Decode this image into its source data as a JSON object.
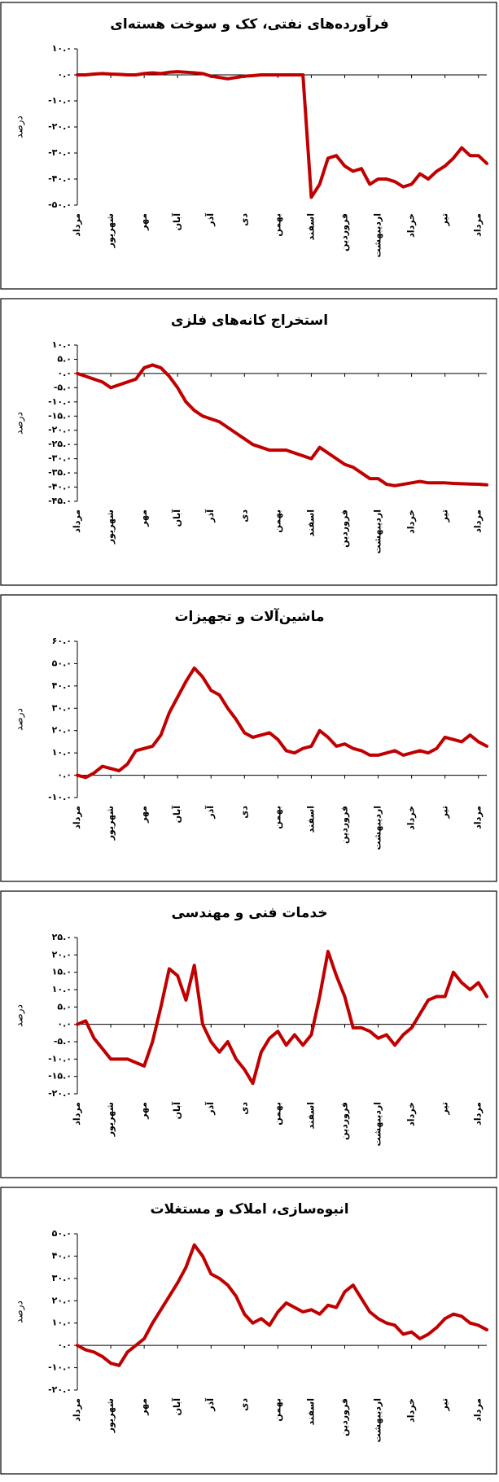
{
  "chart_data": [
    {
      "type": "line",
      "title": "فرآورده‌های نفتی، کک و سوخت هسته‌ای",
      "y_label": "درصد",
      "x": [
        0,
        0.25,
        0.5,
        0.75,
        1,
        1.25,
        1.5,
        1.75,
        2,
        2.25,
        2.5,
        2.75,
        3,
        3.25,
        3.5,
        3.75,
        4,
        4.25,
        4.5,
        4.75,
        5,
        5.25,
        5.5,
        5.75,
        6,
        6.25,
        6.5,
        6.75,
        7,
        7.25,
        7.5,
        7.75,
        8,
        8.25,
        8.5,
        8.75,
        9,
        9.25,
        9.5,
        9.75,
        10,
        10.25,
        10.5,
        10.75,
        11,
        11.25,
        11.5,
        11.75,
        12,
        12.25
      ],
      "series": [
        {
          "color": "#c00000",
          "values": [
            0,
            0,
            0.3,
            0.5,
            0.3,
            0.2,
            0,
            0,
            0.5,
            0.8,
            0.5,
            1,
            1.2,
            1,
            0.8,
            0.5,
            -0.5,
            -1,
            -1.5,
            -1,
            -0.5,
            -0.3,
            0,
            0,
            0,
            0,
            0,
            0,
            -47,
            -42,
            -32,
            -31,
            -35,
            -37,
            -36,
            -42,
            -40,
            -40,
            -41,
            -43,
            -42,
            -38,
            -40,
            -37,
            -35,
            -32,
            -28,
            -31,
            -31,
            -34
          ]
        }
      ],
      "xlim": [
        0,
        12.25
      ],
      "xticks": [
        {
          "value": 0,
          "label": "مرداد"
        },
        {
          "value": 1,
          "label": "شهریور"
        },
        {
          "value": 2,
          "label": "مهر"
        },
        {
          "value": 3,
          "label": "آبان"
        },
        {
          "value": 4,
          "label": "آذر"
        },
        {
          "value": 5,
          "label": "دی"
        },
        {
          "value": 6,
          "label": "بهمن"
        },
        {
          "value": 7,
          "label": "اسفند"
        },
        {
          "value": 8,
          "label": "فروردین"
        },
        {
          "value": 9,
          "label": "اردیبهشت"
        },
        {
          "value": 10,
          "label": "خرداد"
        },
        {
          "value": 11,
          "label": "تیر"
        },
        {
          "value": 12,
          "label": "مرداد"
        }
      ],
      "ylim": [
        -50,
        10
      ],
      "yticks": [
        {
          "value": -50,
          "label": "-۵۰.۰"
        },
        {
          "value": -40,
          "label": "-۴۰.۰"
        },
        {
          "value": -30,
          "label": "-۳۰.۰"
        },
        {
          "value": -20,
          "label": "-۲۰.۰"
        },
        {
          "value": -10,
          "label": "-۱۰.۰"
        },
        {
          "value": 0,
          "label": "۰.۰"
        },
        {
          "value": 10,
          "label": "۱۰.۰"
        }
      ]
    },
    {
      "type": "line",
      "title": "استخراج کانه‌های فلزی",
      "y_label": "درصد",
      "x": [
        0,
        0.25,
        0.5,
        0.75,
        1,
        1.25,
        1.5,
        1.75,
        2,
        2.25,
        2.5,
        2.75,
        3,
        3.25,
        3.5,
        3.75,
        4,
        4.25,
        4.5,
        4.75,
        5,
        5.25,
        5.5,
        5.75,
        6,
        6.25,
        6.5,
        6.75,
        7,
        7.25,
        7.5,
        7.75,
        8,
        8.25,
        8.5,
        8.75,
        9,
        9.25,
        9.5,
        9.75,
        10,
        10.25,
        10.5,
        10.75,
        11,
        11.25,
        11.5,
        11.75,
        12,
        12.25
      ],
      "series": [
        {
          "color": "#c00000",
          "values": [
            0,
            -1,
            -2,
            -3,
            -5,
            -4,
            -3,
            -2,
            2,
            3,
            2,
            -1,
            -5,
            -10,
            -13,
            -15,
            -16,
            -17,
            -19,
            -21,
            -23,
            -25,
            -26,
            -27,
            -27,
            -27,
            -28,
            -29,
            -30,
            -26,
            -28,
            -30,
            -32,
            -33,
            -35,
            -37,
            -37,
            -39,
            -39.5,
            -39,
            -38.5,
            -38,
            -38.5,
            -38.5,
            -38.5,
            -38.7,
            -38.8,
            -38.9,
            -39,
            -39.2
          ]
        }
      ],
      "xlim": [
        0,
        12.25
      ],
      "xticks": [
        {
          "value": 0,
          "label": "مرداد"
        },
        {
          "value": 1,
          "label": "شهریور"
        },
        {
          "value": 2,
          "label": "مهر"
        },
        {
          "value": 3,
          "label": "آبان"
        },
        {
          "value": 4,
          "label": "آذر"
        },
        {
          "value": 5,
          "label": "دی"
        },
        {
          "value": 6,
          "label": "بهمن"
        },
        {
          "value": 7,
          "label": "اسفند"
        },
        {
          "value": 8,
          "label": "فروردین"
        },
        {
          "value": 9,
          "label": "اردیبهشت"
        },
        {
          "value": 10,
          "label": "خرداد"
        },
        {
          "value": 11,
          "label": "تیر"
        },
        {
          "value": 12,
          "label": "مرداد"
        }
      ],
      "ylim": [
        -45,
        10
      ],
      "yticks": [
        {
          "value": -45,
          "label": "-۴۵.۰"
        },
        {
          "value": -40,
          "label": "-۴۰.۰"
        },
        {
          "value": -35,
          "label": "-۳۵.۰"
        },
        {
          "value": -30,
          "label": "-۳۰.۰"
        },
        {
          "value": -25,
          "label": "-۲۵.۰"
        },
        {
          "value": -20,
          "label": "-۲۰.۰"
        },
        {
          "value": -15,
          "label": "-۱۵.۰"
        },
        {
          "value": -10,
          "label": "-۱۰.۰"
        },
        {
          "value": -5,
          "label": "-۵.۰"
        },
        {
          "value": 0,
          "label": "۰.۰"
        },
        {
          "value": 5,
          "label": "۵.۰"
        },
        {
          "value": 10,
          "label": "۱۰.۰"
        }
      ]
    },
    {
      "type": "line",
      "title": "ماشین‌آلات و تجهیزات",
      "y_label": "درصد",
      "x": [
        0,
        0.25,
        0.5,
        0.75,
        1,
        1.25,
        1.5,
        1.75,
        2,
        2.25,
        2.5,
        2.75,
        3,
        3.25,
        3.5,
        3.75,
        4,
        4.25,
        4.5,
        4.75,
        5,
        5.25,
        5.5,
        5.75,
        6,
        6.25,
        6.5,
        6.75,
        7,
        7.25,
        7.5,
        7.75,
        8,
        8.25,
        8.5,
        8.75,
        9,
        9.25,
        9.5,
        9.75,
        10,
        10.25,
        10.5,
        10.75,
        11,
        11.25,
        11.5,
        11.75,
        12,
        12.25
      ],
      "series": [
        {
          "color": "#c00000",
          "values": [
            0,
            -1,
            1,
            4,
            3,
            2,
            5,
            11,
            12,
            13,
            18,
            28,
            35,
            42,
            48,
            44,
            38,
            36,
            30,
            25,
            19,
            17,
            18,
            19,
            16,
            11,
            10,
            12,
            13,
            20,
            17,
            13,
            14,
            12,
            11,
            9,
            9,
            10,
            11,
            9,
            10,
            11,
            10,
            12,
            17,
            16,
            15,
            18,
            15,
            13
          ]
        }
      ],
      "xlim": [
        0,
        12.25
      ],
      "xticks": [
        {
          "value": 0,
          "label": "مرداد"
        },
        {
          "value": 1,
          "label": "شهریور"
        },
        {
          "value": 2,
          "label": "مهر"
        },
        {
          "value": 3,
          "label": "آبان"
        },
        {
          "value": 4,
          "label": "آذر"
        },
        {
          "value": 5,
          "label": "دی"
        },
        {
          "value": 6,
          "label": "بهمن"
        },
        {
          "value": 7,
          "label": "اسفند"
        },
        {
          "value": 8,
          "label": "فروردین"
        },
        {
          "value": 9,
          "label": "اردیبهشت"
        },
        {
          "value": 10,
          "label": "خرداد"
        },
        {
          "value": 11,
          "label": "تیر"
        },
        {
          "value": 12,
          "label": "مرداد"
        }
      ],
      "ylim": [
        -10,
        60
      ],
      "yticks": [
        {
          "value": -10,
          "label": "-۱۰.۰"
        },
        {
          "value": 0,
          "label": "۰.۰"
        },
        {
          "value": 10,
          "label": "۱۰.۰"
        },
        {
          "value": 20,
          "label": "۲۰.۰"
        },
        {
          "value": 30,
          "label": "۳۰.۰"
        },
        {
          "value": 40,
          "label": "۴۰.۰"
        },
        {
          "value": 50,
          "label": "۵۰.۰"
        },
        {
          "value": 60,
          "label": "۶۰.۰"
        }
      ]
    },
    {
      "type": "line",
      "title": "خدمات فنی و مهندسی",
      "y_label": "درصد",
      "x": [
        0,
        0.25,
        0.5,
        0.75,
        1,
        1.25,
        1.5,
        1.75,
        2,
        2.25,
        2.5,
        2.75,
        3,
        3.25,
        3.5,
        3.75,
        4,
        4.25,
        4.5,
        4.75,
        5,
        5.25,
        5.5,
        5.75,
        6,
        6.25,
        6.5,
        6.75,
        7,
        7.25,
        7.5,
        7.75,
        8,
        8.25,
        8.5,
        8.75,
        9,
        9.25,
        9.5,
        9.75,
        10,
        10.25,
        10.5,
        10.75,
        11,
        11.25,
        11.5,
        11.75,
        12,
        12.25
      ],
      "series": [
        {
          "color": "#c00000",
          "values": [
            0,
            1,
            -4,
            -7,
            -10,
            -10,
            -10,
            -11,
            -12,
            -5,
            5,
            16,
            14,
            7,
            17,
            0,
            -5,
            -8,
            -5,
            -10,
            -13,
            -17,
            -8,
            -4,
            -2,
            -6,
            -3,
            -6,
            -3,
            8,
            21,
            14,
            8,
            -1,
            -1,
            -2,
            -4,
            -3,
            -6,
            -3,
            -1,
            3,
            7,
            8,
            8,
            15,
            12,
            10,
            12,
            8
          ]
        }
      ],
      "xlim": [
        0,
        12.25
      ],
      "xticks": [
        {
          "value": 0,
          "label": "مرداد"
        },
        {
          "value": 1,
          "label": "شهریور"
        },
        {
          "value": 2,
          "label": "مهر"
        },
        {
          "value": 3,
          "label": "آبان"
        },
        {
          "value": 4,
          "label": "آذر"
        },
        {
          "value": 5,
          "label": "دی"
        },
        {
          "value": 6,
          "label": "بهمن"
        },
        {
          "value": 7,
          "label": "اسفند"
        },
        {
          "value": 8,
          "label": "فروردین"
        },
        {
          "value": 9,
          "label": "اردیبهشت"
        },
        {
          "value": 10,
          "label": "خرداد"
        },
        {
          "value": 11,
          "label": "تیر"
        },
        {
          "value": 12,
          "label": "مرداد"
        }
      ],
      "ylim": [
        -20,
        25
      ],
      "yticks": [
        {
          "value": -20,
          "label": "-۲۰.۰"
        },
        {
          "value": -15,
          "label": "-۱۵.۰"
        },
        {
          "value": -10,
          "label": "-۱۰.۰"
        },
        {
          "value": -5,
          "label": "-۵.۰"
        },
        {
          "value": 0,
          "label": "۰.۰"
        },
        {
          "value": 5,
          "label": "۵.۰"
        },
        {
          "value": 10,
          "label": "۱۰.۰"
        },
        {
          "value": 15,
          "label": "۱۵.۰"
        },
        {
          "value": 20,
          "label": "۲۰.۰"
        },
        {
          "value": 25,
          "label": "۲۵.۰"
        }
      ]
    },
    {
      "type": "line",
      "title": "انبوه‌سازی، املاک و مستغلات",
      "y_label": "درصد",
      "x": [
        0,
        0.25,
        0.5,
        0.75,
        1,
        1.25,
        1.5,
        1.75,
        2,
        2.25,
        2.5,
        2.75,
        3,
        3.25,
        3.5,
        3.75,
        4,
        4.25,
        4.5,
        4.75,
        5,
        5.25,
        5.5,
        5.75,
        6,
        6.25,
        6.5,
        6.75,
        7,
        7.25,
        7.5,
        7.75,
        8,
        8.25,
        8.5,
        8.75,
        9,
        9.25,
        9.5,
        9.75,
        10,
        10.25,
        10.5,
        10.75,
        11,
        11.25,
        11.5,
        11.75,
        12,
        12.25
      ],
      "series": [
        {
          "color": "#c00000",
          "values": [
            0,
            -2,
            -3,
            -5,
            -8,
            -9,
            -3,
            0,
            3,
            10,
            16,
            22,
            28,
            35,
            45,
            40,
            32,
            30,
            27,
            22,
            14,
            10,
            12,
            9,
            15,
            19,
            17,
            15,
            16,
            14,
            18,
            17,
            24,
            27,
            21,
            15,
            12,
            10,
            9,
            5,
            6,
            3,
            5,
            8,
            12,
            14,
            13,
            10,
            9,
            7
          ]
        }
      ],
      "xlim": [
        0,
        12.25
      ],
      "xticks": [
        {
          "value": 0,
          "label": "مرداد"
        },
        {
          "value": 1,
          "label": "شهریور"
        },
        {
          "value": 2,
          "label": "مهر"
        },
        {
          "value": 3,
          "label": "آبان"
        },
        {
          "value": 4,
          "label": "آذر"
        },
        {
          "value": 5,
          "label": "دی"
        },
        {
          "value": 6,
          "label": "بهمن"
        },
        {
          "value": 7,
          "label": "اسفند"
        },
        {
          "value": 8,
          "label": "فروردین"
        },
        {
          "value": 9,
          "label": "اردیبهشت"
        },
        {
          "value": 10,
          "label": "خرداد"
        },
        {
          "value": 11,
          "label": "تیر"
        },
        {
          "value": 12,
          "label": "مرداد"
        }
      ],
      "ylim": [
        -20,
        50
      ],
      "yticks": [
        {
          "value": -20,
          "label": "-۲۰.۰"
        },
        {
          "value": -10,
          "label": "-۱۰.۰"
        },
        {
          "value": 0,
          "label": "۰.۰"
        },
        {
          "value": 10,
          "label": "۱۰.۰"
        },
        {
          "value": 20,
          "label": "۲۰.۰"
        },
        {
          "value": 30,
          "label": "۳۰.۰"
        },
        {
          "value": 40,
          "label": "۴۰.۰"
        },
        {
          "value": 50,
          "label": "۵۰.۰"
        }
      ]
    }
  ]
}
